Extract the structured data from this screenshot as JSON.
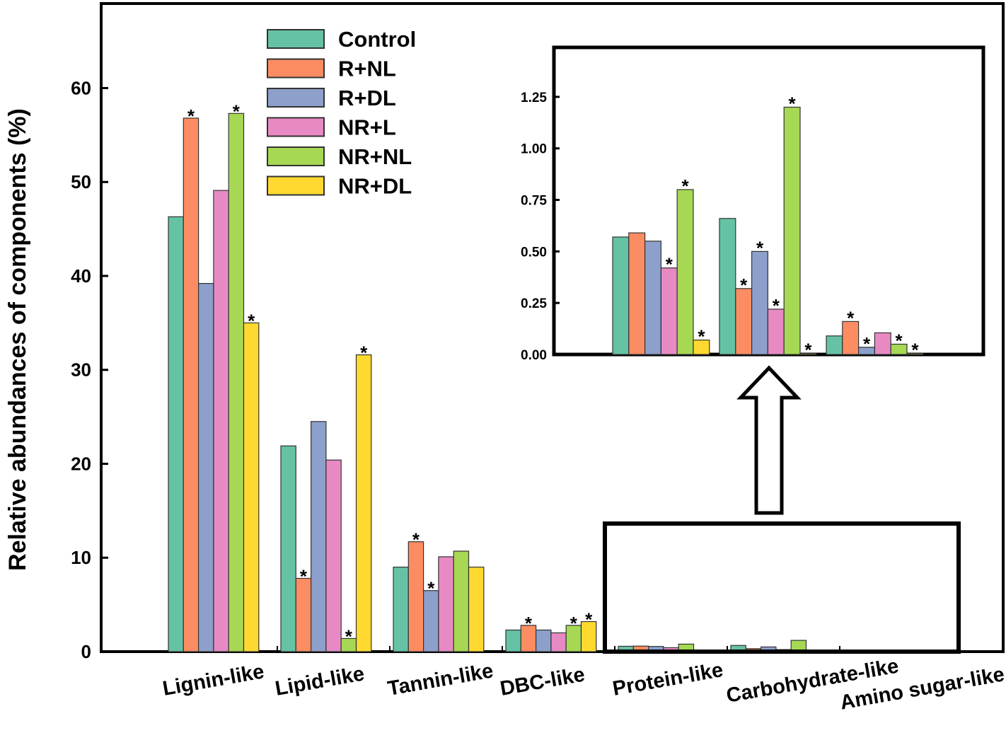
{
  "chart_data": {
    "type": "bar",
    "title": "",
    "xlabel": "",
    "ylabel": "Relative abundances of components (%)",
    "ylim": [
      0,
      69
    ],
    "yticks": [
      0,
      10,
      20,
      30,
      40,
      50,
      60
    ],
    "grid": false,
    "legend_placement": "top-left",
    "categories": [
      "Lignin-like",
      "Lipid-like",
      "Tannin-like",
      "DBC-like",
      "Protein-like",
      "Carbohydrate-like",
      "Amino sugar-like"
    ],
    "series": [
      {
        "name": "Control",
        "color": "#66c2a5",
        "values": [
          46.3,
          21.9,
          9.0,
          2.3,
          0.57,
          0.66,
          0.09
        ],
        "significant": [
          false,
          false,
          false,
          false,
          false,
          false,
          false
        ]
      },
      {
        "name": "R+NL",
        "color": "#fc8d62",
        "values": [
          56.8,
          7.8,
          11.7,
          2.8,
          0.59,
          0.32,
          0.16
        ],
        "significant": [
          true,
          true,
          true,
          true,
          false,
          true,
          true
        ]
      },
      {
        "name": "R+DL",
        "color": "#8da0cb",
        "values": [
          39.2,
          24.5,
          6.5,
          2.3,
          0.55,
          0.5,
          0.035
        ],
        "significant": [
          false,
          false,
          true,
          false,
          false,
          true,
          true
        ]
      },
      {
        "name": "NR+L",
        "color": "#e78ac3",
        "values": [
          49.1,
          20.4,
          10.1,
          2.0,
          0.42,
          0.22,
          0.105
        ],
        "significant": [
          false,
          false,
          false,
          false,
          true,
          true,
          false
        ]
      },
      {
        "name": "NR+NL",
        "color": "#a6d854",
        "values": [
          57.3,
          1.4,
          10.7,
          2.8,
          0.8,
          1.2,
          0.05
        ],
        "significant": [
          true,
          true,
          false,
          true,
          true,
          true,
          true
        ]
      },
      {
        "name": "NR+DL",
        "color": "#ffd92f",
        "values": [
          35.0,
          31.6,
          9.0,
          3.2,
          0.07,
          0.005,
          0.005
        ],
        "significant": [
          true,
          true,
          false,
          true,
          true,
          true,
          true
        ]
      }
    ],
    "significance_marker": "*",
    "inset": {
      "categories": [
        "Protein-like",
        "Carbohydrate-like",
        "Amino sugar-like"
      ],
      "ylim": [
        0,
        1.49
      ],
      "yticks": [
        "0.00",
        "0.25",
        "0.50",
        "0.75",
        "1.00",
        "1.25"
      ]
    }
  }
}
